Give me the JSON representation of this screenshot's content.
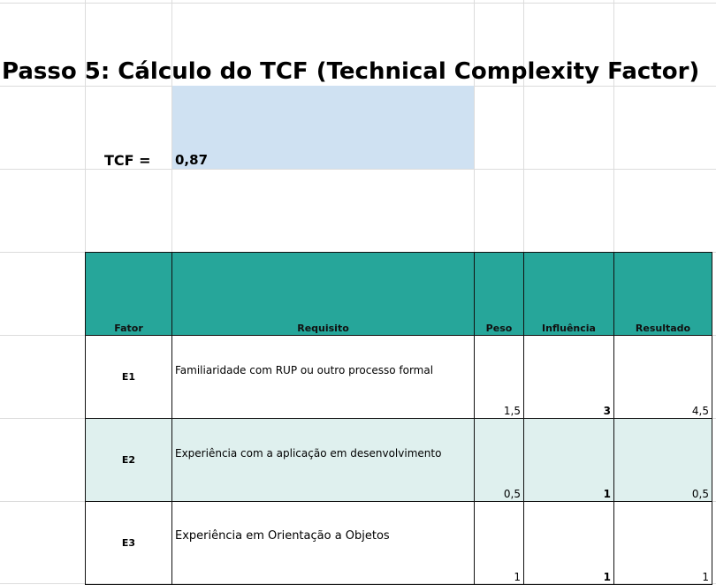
{
  "title": "Passo 5: Cálculo do TCF (Technical Complexity Factor)",
  "tcf": {
    "label": "TCF =",
    "value": "0,87"
  },
  "table": {
    "headers": {
      "fator": "Fator",
      "requisito": "Requisito",
      "peso": "Peso",
      "influencia": "Influência",
      "resultado": "Resultado"
    },
    "rows": [
      {
        "fator": "E1",
        "requisito": "Familiaridade com RUP ou outro processo formal",
        "peso": "1,5",
        "influencia": "3",
        "resultado": "4,5"
      },
      {
        "fator": "E2",
        "requisito": "Experiência com a aplicação em desenvolvimento",
        "peso": "0,5",
        "influencia": "1",
        "resultado": "0,5"
      },
      {
        "fator": "E3",
        "requisito": "Experiência em Orientação a Objetos",
        "peso": "1",
        "influencia": "1",
        "resultado": "1"
      }
    ]
  },
  "colors": {
    "header_fill": "#26a69a",
    "tcf_fill": "#cfe1f2",
    "alt_row_fill": "#dff0ee"
  }
}
